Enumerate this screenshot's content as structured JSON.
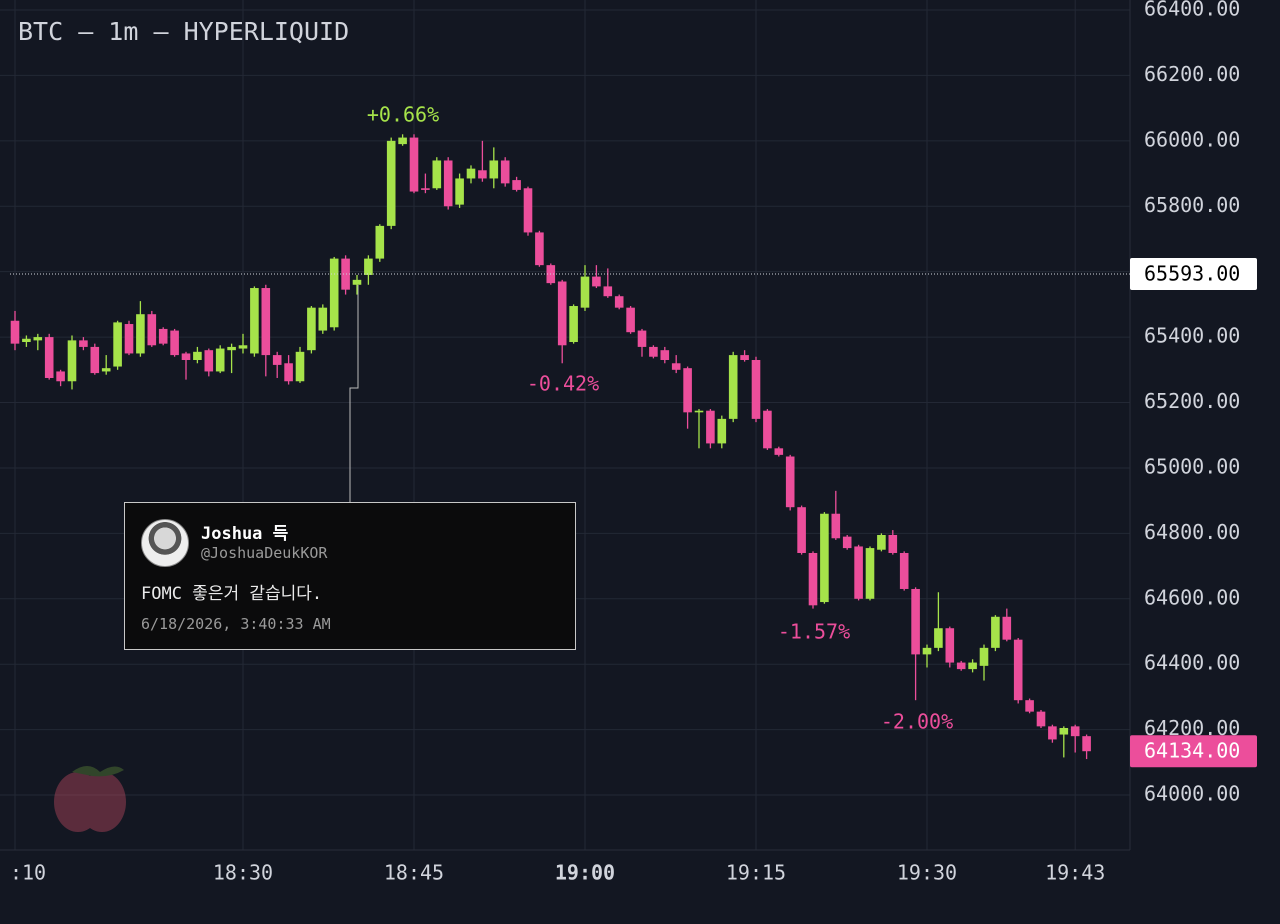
{
  "chart_data": {
    "type": "candlestick",
    "title": "BTC — 1m — HYPERLIQUID",
    "up_color": "#a6e34a",
    "down_color": "#ec4e9b",
    "x": [
      "18:10",
      "18:11",
      "18:12",
      "18:13",
      "18:14",
      "18:15",
      "18:16",
      "18:17",
      "18:18",
      "18:19",
      "18:20",
      "18:21",
      "18:22",
      "18:23",
      "18:24",
      "18:25",
      "18:26",
      "18:27",
      "18:28",
      "18:29",
      "18:30",
      "18:31",
      "18:32",
      "18:33",
      "18:34",
      "18:35",
      "18:36",
      "18:37",
      "18:38",
      "18:39",
      "18:40",
      "18:41",
      "18:42",
      "18:43",
      "18:44",
      "18:45",
      "18:46",
      "18:47",
      "18:48",
      "18:49",
      "18:50",
      "18:51",
      "18:52",
      "18:53",
      "18:54",
      "18:55",
      "18:56",
      "18:57",
      "18:58",
      "18:59",
      "19:00",
      "19:01",
      "19:02",
      "19:03",
      "19:04",
      "19:05",
      "19:06",
      "19:07",
      "19:08",
      "19:09",
      "19:10",
      "19:11",
      "19:12",
      "19:13",
      "19:14",
      "19:15",
      "19:16",
      "19:17",
      "19:18",
      "19:19",
      "19:20",
      "19:21",
      "19:22",
      "19:23",
      "19:24",
      "19:25",
      "19:26",
      "19:27",
      "19:28",
      "19:29",
      "19:30",
      "19:31",
      "19:32",
      "19:33",
      "19:34",
      "19:35",
      "19:36",
      "19:37",
      "19:38",
      "19:39",
      "19:40",
      "19:41",
      "19:42",
      "19:43",
      "19:44"
    ],
    "open": [
      65450,
      65385,
      65390,
      65400,
      65295,
      65265,
      65390,
      65370,
      65295,
      65310,
      65440,
      65350,
      65470,
      65425,
      65420,
      65350,
      65330,
      65360,
      65295,
      65360,
      65365,
      65350,
      65550,
      65345,
      65320,
      65265,
      65360,
      65420,
      65430,
      65640,
      65560,
      65590,
      65640,
      65740,
      65990,
      66010,
      65855,
      65855,
      65940,
      65805,
      65885,
      65910,
      65885,
      65940,
      65880,
      65855,
      65720,
      65620,
      65570,
      65385,
      65490,
      65585,
      65555,
      65525,
      65490,
      65420,
      65370,
      65360,
      65320,
      65305,
      65170,
      65175,
      65075,
      65150,
      65345,
      65330,
      65175,
      65060,
      65035,
      64880,
      64740,
      64590,
      64860,
      64790,
      64760,
      64600,
      64750,
      64795,
      64740,
      64630,
      64430,
      64450,
      64510,
      64405,
      64385,
      64395,
      64450,
      64545,
      64475,
      64290,
      64255,
      64210,
      64185,
      64210,
      64180
    ],
    "high": [
      65480,
      65405,
      65410,
      65410,
      65300,
      65405,
      65400,
      65380,
      65345,
      65450,
      65450,
      65510,
      65480,
      65430,
      65425,
      65355,
      65370,
      65365,
      65375,
      65380,
      65410,
      65555,
      65560,
      65355,
      65345,
      65370,
      65495,
      65500,
      65645,
      65650,
      65590,
      65650,
      65745,
      66010,
      66020,
      66020,
      65900,
      65950,
      65950,
      65900,
      65925,
      66000,
      65980,
      65950,
      65890,
      65860,
      65725,
      65625,
      65575,
      65500,
      65620,
      65620,
      65610,
      65530,
      65495,
      65425,
      65375,
      65370,
      65345,
      65310,
      65180,
      65180,
      65160,
      65355,
      65360,
      65340,
      65180,
      65065,
      65040,
      64885,
      64745,
      64865,
      64930,
      64795,
      64765,
      64760,
      64800,
      64810,
      64745,
      64635,
      64460,
      64620,
      64515,
      64410,
      64415,
      64460,
      64550,
      64570,
      64480,
      64295,
      64260,
      64215,
      64210,
      64215,
      64185
    ],
    "low": [
      65360,
      65370,
      65360,
      65270,
      65250,
      65240,
      65360,
      65285,
      65285,
      65300,
      65345,
      65340,
      65370,
      65375,
      65340,
      65270,
      65320,
      65280,
      65290,
      65290,
      65350,
      65340,
      65280,
      65275,
      65255,
      65260,
      65350,
      65410,
      65420,
      65530,
      65530,
      65560,
      65630,
      65730,
      65985,
      65840,
      65840,
      65850,
      65790,
      65795,
      65870,
      65875,
      65855,
      65860,
      65845,
      65710,
      65615,
      65560,
      65320,
      65380,
      65480,
      65550,
      65520,
      65485,
      65410,
      65340,
      65335,
      65320,
      65290,
      65120,
      65060,
      65060,
      65060,
      65140,
      65325,
      65140,
      65055,
      65035,
      64870,
      64735,
      64570,
      64585,
      64780,
      64750,
      64595,
      64595,
      64745,
      64735,
      64625,
      64290,
      64390,
      64440,
      64390,
      64380,
      64375,
      64350,
      64440,
      64470,
      64280,
      64250,
      64205,
      64160,
      64115,
      64130,
      64110
    ],
    "close": [
      65380,
      65395,
      65400,
      65275,
      65265,
      65390,
      65370,
      65290,
      65305,
      65445,
      65350,
      65470,
      65375,
      65380,
      65345,
      65330,
      65355,
      65295,
      65365,
      65370,
      65375,
      65550,
      65345,
      65315,
      65265,
      65355,
      65490,
      65490,
      65640,
      65545,
      65575,
      65640,
      65740,
      66000,
      66010,
      65845,
      65850,
      65940,
      65800,
      65885,
      65915,
      65885,
      65940,
      65870,
      65850,
      65720,
      65620,
      65565,
      65375,
      65495,
      65585,
      65555,
      65525,
      65490,
      65415,
      65370,
      65340,
      65330,
      65300,
      65170,
      65175,
      65075,
      65150,
      65345,
      65330,
      65150,
      65060,
      65040,
      64880,
      64740,
      64580,
      64860,
      64785,
      64755,
      64600,
      64755,
      64795,
      64740,
      64630,
      64430,
      64450,
      64510,
      64405,
      64385,
      64405,
      64450,
      64545,
      64475,
      64290,
      64255,
      64210,
      64170,
      64205,
      64180,
      64134
    ],
    "ylim": [
      63832,
      66400
    ],
    "yticks": [
      {
        "value": 64000,
        "label": "64000.00"
      },
      {
        "value": 64200,
        "label": "64200.00"
      },
      {
        "value": 64400,
        "label": "64400.00"
      },
      {
        "value": 64600,
        "label": "64600.00"
      },
      {
        "value": 64800,
        "label": "64800.00"
      },
      {
        "value": 65000,
        "label": "65000.00"
      },
      {
        "value": 65200,
        "label": "65200.00"
      },
      {
        "value": 65400,
        "label": "65400.00"
      },
      {
        "value": 65600,
        "label": "65600.00"
      },
      {
        "value": 65800,
        "label": "65800.00"
      },
      {
        "value": 66000,
        "label": "66000.00"
      },
      {
        "value": 66200,
        "label": "66200.00"
      },
      {
        "value": 66400,
        "label": "66400.00"
      }
    ],
    "xticks": [
      {
        "value": "18:10",
        "label": ":10"
      },
      "18:30",
      "18:45",
      "19:00",
      "19:15",
      "19:30",
      "19:43"
    ],
    "grid": true,
    "price_lines": [
      {
        "value": 65593,
        "label": "65593.00",
        "color": "#ffffff"
      },
      {
        "value": 64134,
        "label": "64134.00",
        "color": "#ec4e9b"
      }
    ],
    "annotations": [
      {
        "text": "+0.66%",
        "color": "#a6e34a"
      },
      {
        "text": "-0.42%",
        "color": "#ec4e9b"
      },
      {
        "text": "-1.57%",
        "color": "#ec4e9b"
      },
      {
        "text": "-2.00%",
        "color": "#ec4e9b"
      }
    ]
  },
  "tweet": {
    "name": "Joshua 득",
    "handle": "@JoshuaDeukKOR",
    "text": "FOMC 좋은거 같습니다.",
    "timestamp": "6/18/2026, 3:40:33 AM"
  }
}
